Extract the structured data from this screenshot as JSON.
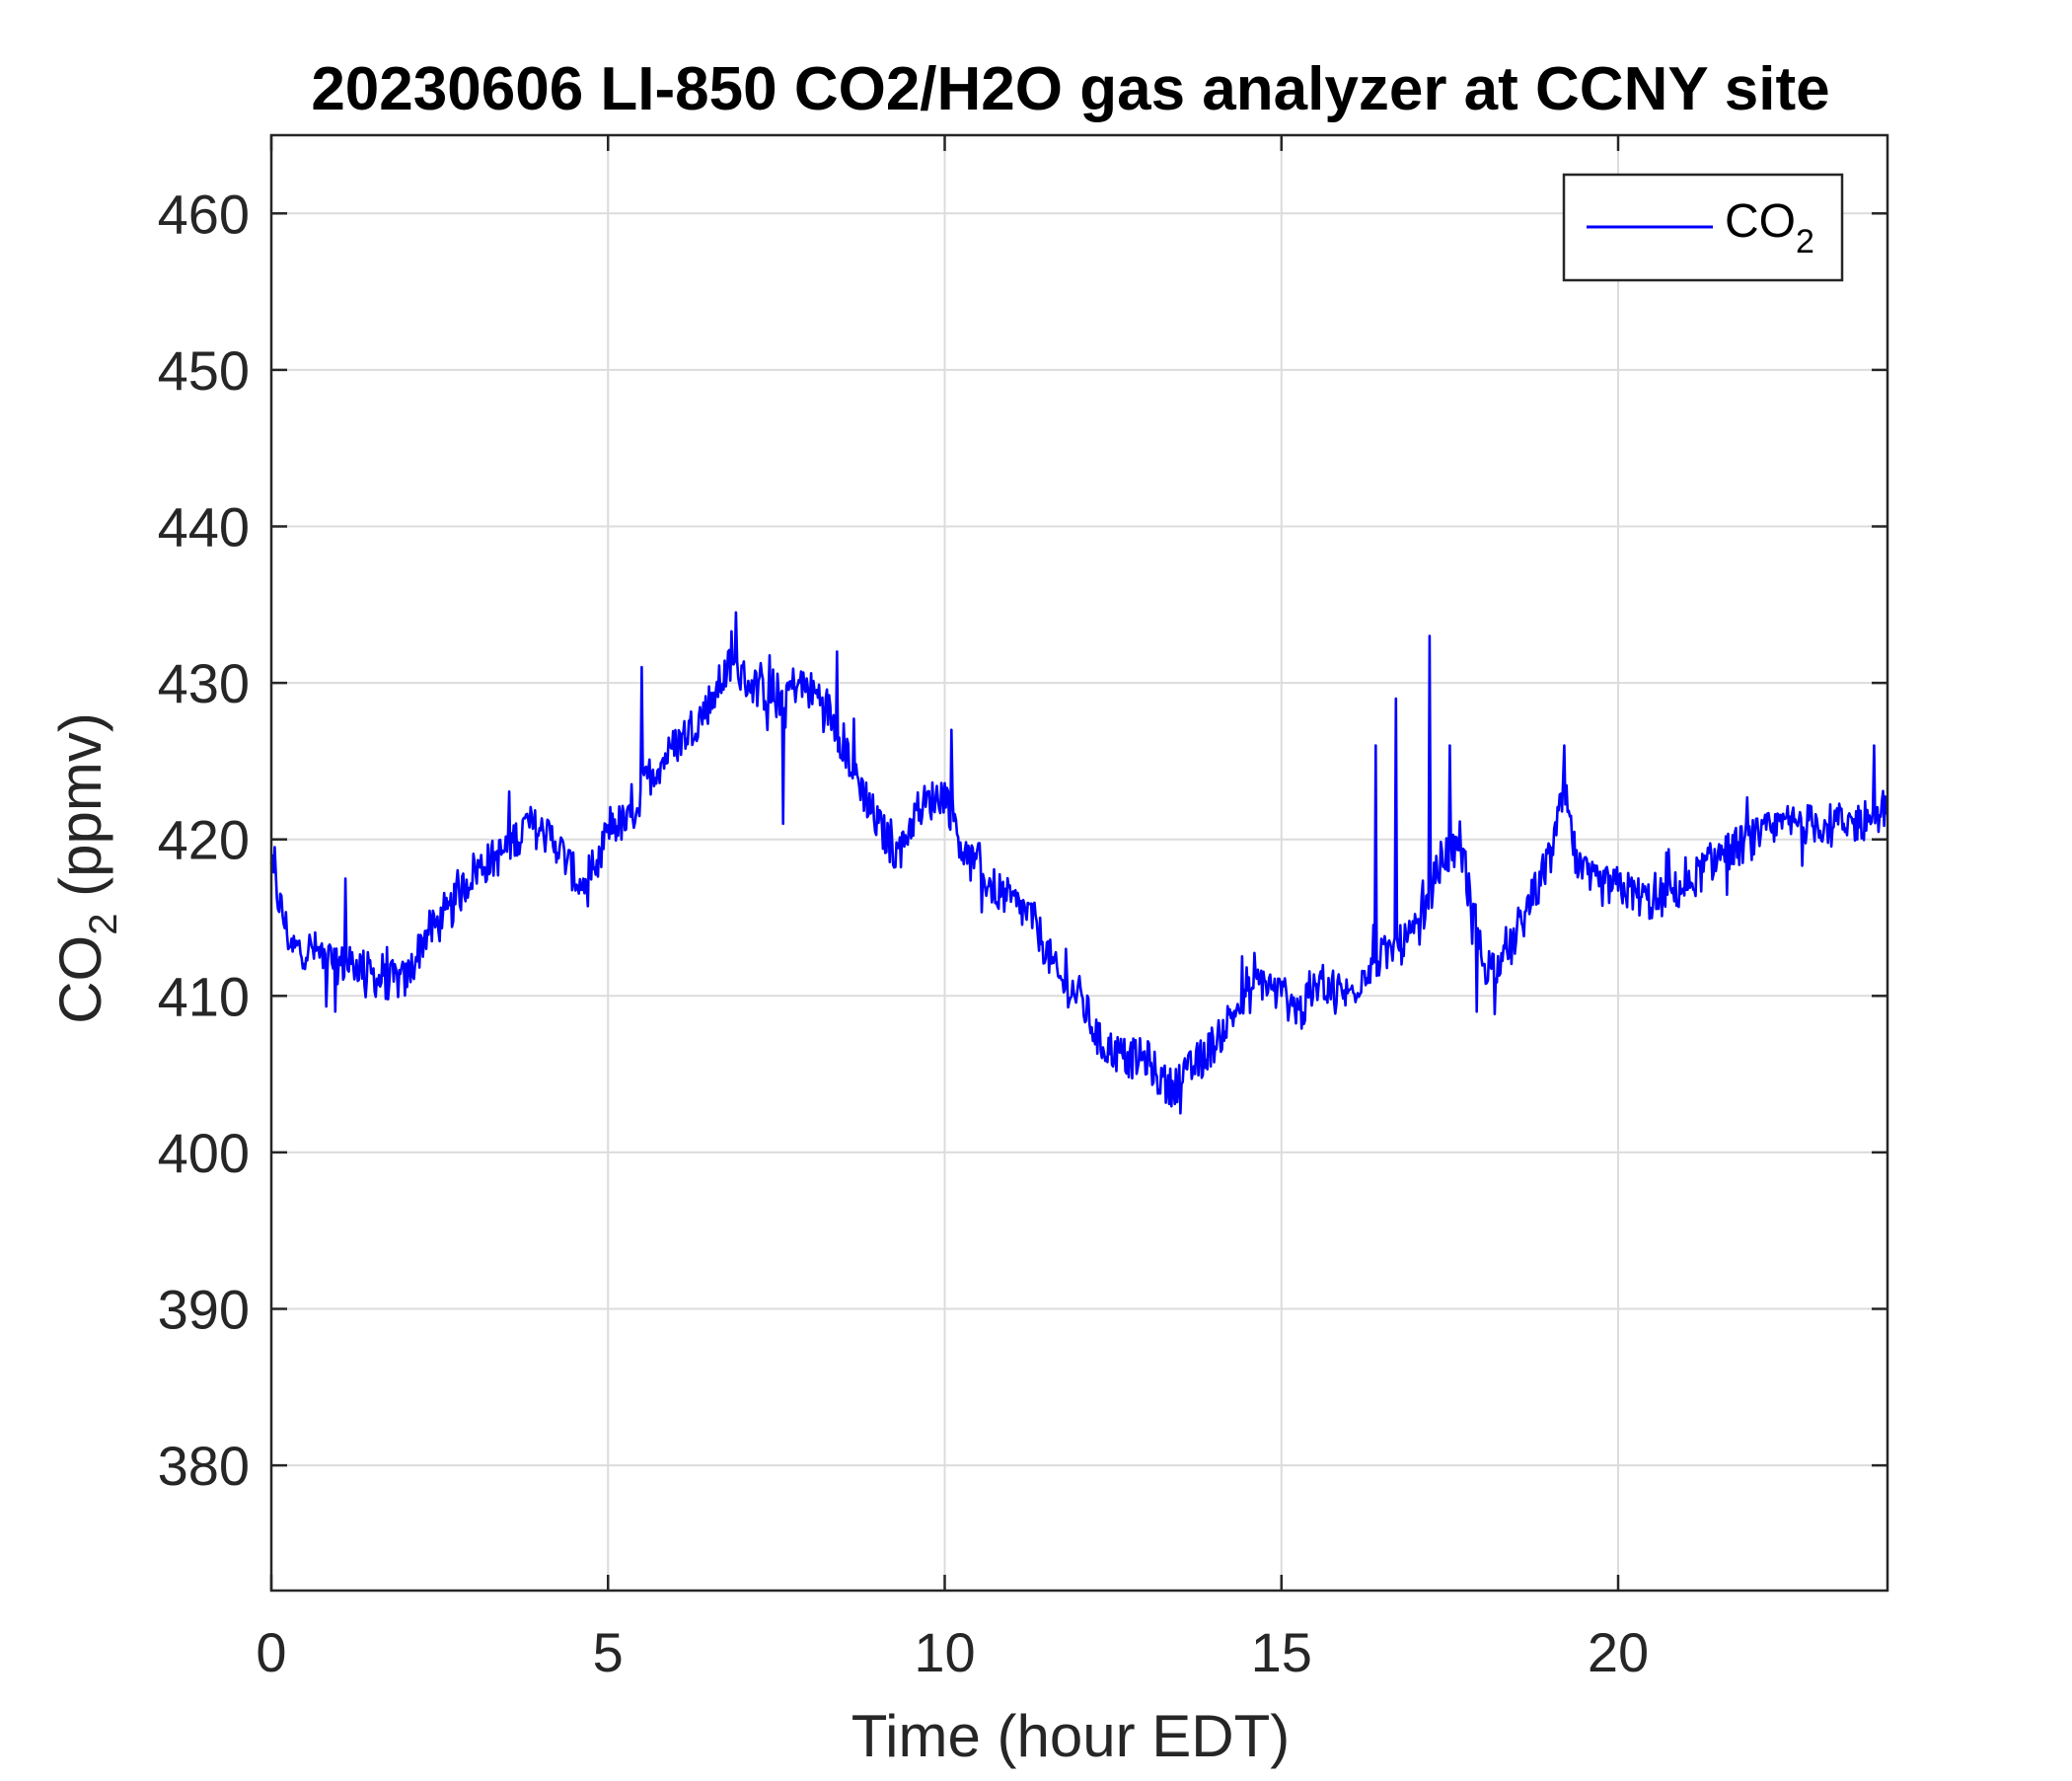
{
  "colors": {
    "series": "#0000ff",
    "axis": "#262626",
    "grid": "#dcdcdc",
    "background": "#ffffff"
  },
  "chart_data": {
    "type": "line",
    "title": "20230606 LI-850 CO2/H2O gas analyzer at CCNY site",
    "xlabel": "Time (hour EDT)",
    "ylabel": {
      "main": "CO",
      "sub": "2",
      "rest": " (ppmv)"
    },
    "xlim": [
      0,
      24
    ],
    "ylim": [
      372,
      465
    ],
    "xticks": [
      0,
      5,
      10,
      15,
      20
    ],
    "yticks": [
      380,
      390,
      400,
      410,
      420,
      430,
      440,
      450,
      460
    ],
    "xtick_labels": [
      "0",
      "5",
      "10",
      "15",
      "20"
    ],
    "ytick_labels": [
      "380",
      "390",
      "400",
      "410",
      "420",
      "430",
      "440",
      "450",
      "460"
    ],
    "grid": true,
    "legend": {
      "position": "top-right",
      "entries": [
        {
          "main": "CO",
          "sub": "2"
        }
      ]
    },
    "series": [
      {
        "name": "CO2",
        "color": "#0000ff",
        "noise_amplitude": 1.3,
        "anchors": [
          [
            0.0,
            418
          ],
          [
            0.3,
            413
          ],
          [
            0.6,
            413
          ],
          [
            1.0,
            412
          ],
          [
            1.3,
            412
          ],
          [
            1.6,
            411
          ],
          [
            2.0,
            411
          ],
          [
            2.3,
            414
          ],
          [
            2.6,
            415
          ],
          [
            3.0,
            418
          ],
          [
            3.4,
            419
          ],
          [
            3.8,
            421
          ],
          [
            4.2,
            420
          ],
          [
            4.6,
            417
          ],
          [
            4.8,
            417
          ],
          [
            5.0,
            421
          ],
          [
            5.3,
            421
          ],
          [
            5.6,
            424
          ],
          [
            6.0,
            426
          ],
          [
            6.4,
            428
          ],
          [
            6.8,
            431
          ],
          [
            7.1,
            430
          ],
          [
            7.5,
            429
          ],
          [
            7.8,
            430
          ],
          [
            8.2,
            429
          ],
          [
            8.6,
            425
          ],
          [
            9.0,
            421
          ],
          [
            9.3,
            419
          ],
          [
            9.6,
            422
          ],
          [
            10.0,
            423
          ],
          [
            10.3,
            419
          ],
          [
            10.7,
            417
          ],
          [
            11.0,
            416
          ],
          [
            11.3,
            415
          ],
          [
            11.7,
            411
          ],
          [
            12.0,
            410
          ],
          [
            12.3,
            407
          ],
          [
            12.7,
            406
          ],
          [
            13.0,
            406
          ],
          [
            13.3,
            404
          ],
          [
            13.6,
            405
          ],
          [
            14.0,
            407
          ],
          [
            14.3,
            409
          ],
          [
            14.7,
            411
          ],
          [
            15.0,
            410
          ],
          [
            15.3,
            409
          ],
          [
            15.6,
            411
          ],
          [
            16.0,
            410
          ],
          [
            16.3,
            412
          ],
          [
            16.7,
            413
          ],
          [
            17.0,
            414
          ],
          [
            17.4,
            419
          ],
          [
            17.7,
            419
          ],
          [
            18.0,
            412
          ],
          [
            18.3,
            412
          ],
          [
            18.7,
            416
          ],
          [
            19.0,
            419
          ],
          [
            19.2,
            423
          ],
          [
            19.4,
            418
          ],
          [
            19.7,
            417
          ],
          [
            20.0,
            417
          ],
          [
            20.5,
            416
          ],
          [
            21.0,
            417
          ],
          [
            21.5,
            419
          ],
          [
            22.0,
            420
          ],
          [
            22.5,
            421
          ],
          [
            23.0,
            421
          ],
          [
            23.5,
            421
          ],
          [
            24.0,
            422
          ]
        ],
        "spikes": [
          [
            0.05,
            419.5
          ],
          [
            0.95,
            409
          ],
          [
            1.1,
            417.5
          ],
          [
            5.5,
            431
          ],
          [
            6.9,
            434.5
          ],
          [
            7.6,
            421
          ],
          [
            8.4,
            432
          ],
          [
            10.1,
            427
          ],
          [
            11.8,
            413
          ],
          [
            13.5,
            402.5
          ],
          [
            16.4,
            426
          ],
          [
            16.7,
            429
          ],
          [
            17.2,
            433
          ],
          [
            17.5,
            426
          ],
          [
            17.9,
            409
          ],
          [
            19.2,
            426
          ],
          [
            23.8,
            426
          ]
        ]
      }
    ]
  }
}
